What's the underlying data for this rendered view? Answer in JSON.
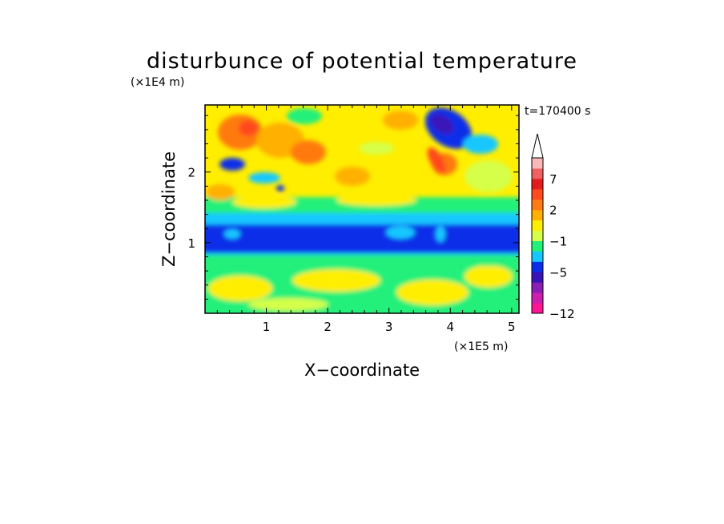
{
  "chart_data": {
    "type": "heatmap",
    "title": "disturbunce of potential temperature",
    "xlabel": "X−coordinate",
    "ylabel": "Z−coordinate",
    "x_unit": "(×1E5 m)",
    "y_unit": "(×1E4 m)",
    "time_label": "t=170400 s",
    "x_ticks": [
      "1",
      "2",
      "3",
      "4",
      "5"
    ],
    "x_tick_values": [
      1,
      2,
      3,
      4,
      5
    ],
    "y_ticks": [
      "1",
      "2"
    ],
    "y_tick_values": [
      1,
      2
    ],
    "xlim": [
      0,
      5.12
    ],
    "ylim": [
      0,
      2.95
    ],
    "colorbar": {
      "colors": [
        "#ff1493",
        "#cc1fb0",
        "#8b1fb5",
        "#3b14b8",
        "#0b2fe8",
        "#14c8ff",
        "#21f07a",
        "#d6ff4a",
        "#ffee00",
        "#ffb000",
        "#ff7a10",
        "#ff4a1c",
        "#e51c1c",
        "#f06060",
        "#f8b8b8"
      ],
      "tick_labels": [
        "7",
        "2",
        "−1",
        "−5",
        "−12"
      ],
      "tick_values": [
        7,
        2,
        -1,
        -5,
        -12
      ],
      "extend": "max"
    },
    "field_description_bands": [
      {
        "z_range": [
          0,
          0.6
        ],
        "dominant": "yellow/green"
      },
      {
        "z_range": [
          0.7,
          1.35
        ],
        "dominant": "blue"
      },
      {
        "z_range": [
          1.35,
          1.6
        ],
        "dominant": "cyan"
      },
      {
        "z_range": [
          1.6,
          2.95
        ],
        "dominant": "yellow/orange"
      }
    ]
  }
}
